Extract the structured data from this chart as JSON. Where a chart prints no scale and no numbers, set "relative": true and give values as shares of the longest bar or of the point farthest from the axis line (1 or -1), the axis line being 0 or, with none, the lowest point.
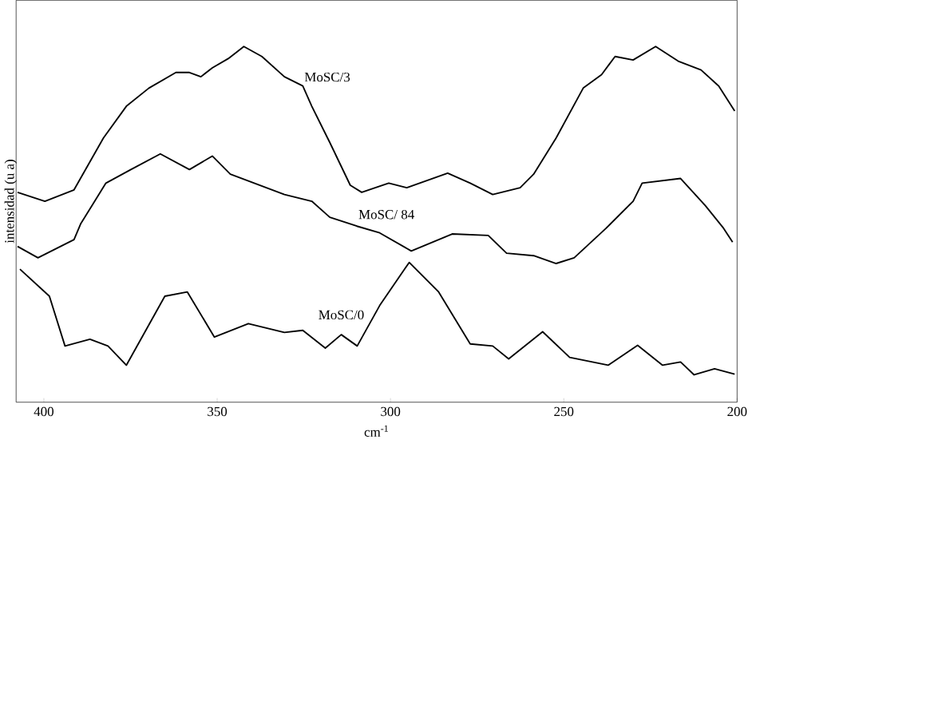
{
  "chart_data": {
    "type": "line",
    "relative": true,
    "xlabel": "cm$^{-1}$",
    "ylabel": "intensidad (u a)",
    "xlim": [
      408,
      200
    ],
    "xticks": [
      400,
      350,
      300,
      250,
      200
    ],
    "series": [
      {
        "name": "MoSC/3",
        "color": "#000000",
        "x": [
          407.6,
          399.7,
          391.3,
          382.8,
          376.2,
          369.7,
          361.9,
          358.0,
          354.7,
          351.4,
          346.8,
          342.3,
          337.1,
          330.6,
          325.3,
          322.7,
          317.5,
          311.6,
          308.3,
          300.5,
          295.3,
          283.5,
          277.0,
          270.5,
          262.6,
          258.7,
          252.2,
          244.4,
          239.1,
          235.2,
          230.0,
          223.5,
          217.0,
          210.4,
          205.3,
          200.7
        ],
        "values": [
          0.59,
          0.565,
          0.597,
          0.743,
          0.832,
          0.883,
          0.927,
          0.927,
          0.915,
          0.94,
          0.966,
          1.0,
          0.972,
          0.915,
          0.889,
          0.832,
          0.73,
          0.61,
          0.59,
          0.616,
          0.603,
          0.644,
          0.616,
          0.584,
          0.603,
          0.641,
          0.743,
          0.883,
          0.921,
          0.972,
          0.962,
          1.0,
          0.959,
          0.934,
          0.889,
          0.819
        ]
      },
      {
        "name": "MoSC/ 84",
        "color": "#000000",
        "x": [
          407.6,
          401.7,
          391.3,
          389.4,
          382.1,
          374.9,
          366.4,
          358.0,
          351.4,
          346.2,
          330.6,
          322.7,
          317.5,
          309.7,
          303.1,
          294.0,
          282.2,
          271.8,
          266.5,
          258.7,
          252.2,
          247.0,
          237.8,
          230.0,
          227.4,
          216.3,
          209.1,
          203.9,
          201.3
        ],
        "values": [
          0.438,
          0.406,
          0.457,
          0.501,
          0.616,
          0.654,
          0.698,
          0.654,
          0.692,
          0.641,
          0.584,
          0.565,
          0.52,
          0.495,
          0.476,
          0.425,
          0.473,
          0.469,
          0.419,
          0.412,
          0.39,
          0.406,
          0.489,
          0.565,
          0.616,
          0.629,
          0.552,
          0.489,
          0.45
        ]
      },
      {
        "name": "MoSC/0",
        "color": "#000000",
        "x": [
          406.9,
          398.4,
          393.9,
          386.7,
          381.5,
          376.2,
          365.1,
          358.6,
          350.8,
          341.0,
          330.6,
          325.3,
          318.8,
          314.2,
          309.6,
          303.1,
          294.6,
          286.1,
          277.0,
          270.5,
          265.9,
          256.1,
          248.3,
          237.2,
          228.7,
          221.5,
          216.3,
          212.4,
          206.5,
          200.7
        ],
        "values": [
          0.374,
          0.298,
          0.158,
          0.177,
          0.158,
          0.104,
          0.298,
          0.31,
          0.183,
          0.221,
          0.196,
          0.202,
          0.152,
          0.19,
          0.158,
          0.272,
          0.393,
          0.31,
          0.164,
          0.158,
          0.122,
          0.198,
          0.126,
          0.104,
          0.16,
          0.104,
          0.113,
          0.077,
          0.094,
          0.079
        ]
      }
    ]
  }
}
